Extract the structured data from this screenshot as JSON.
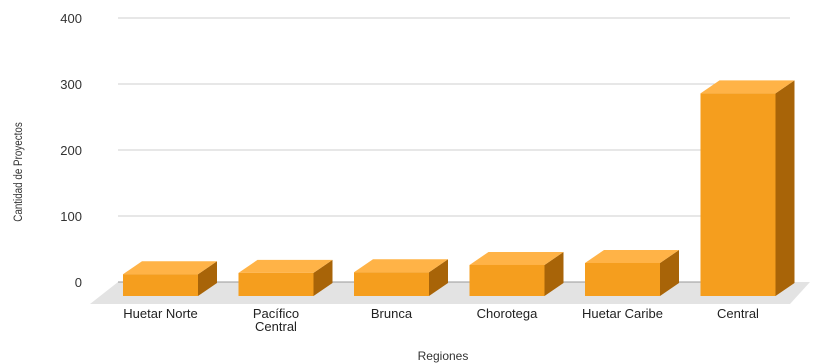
{
  "chart_data": {
    "type": "bar",
    "title": "",
    "xlabel": "Regiones",
    "ylabel": "Cantidad de Proyectos",
    "categories": [
      [
        "Huetar Norte"
      ],
      [
        "Pacífico",
        "Central"
      ],
      [
        "Brunca"
      ],
      [
        "Chorotega"
      ],
      [
        "Huetar Caribe"
      ],
      [
        "Central"
      ]
    ],
    "values": [
      33,
      35,
      36,
      47,
      50,
      307
    ],
    "ylim": [
      0,
      400
    ],
    "yticks": [
      "0",
      "100",
      "200",
      "300",
      "400"
    ],
    "grid": true,
    "legend": "none",
    "colors": {
      "bar_front": "#F59E1E",
      "bar_top": "#FFB347",
      "bar_side": "#A86408",
      "floor": "#E3E3E3",
      "grid": "#CFCFCF"
    }
  }
}
